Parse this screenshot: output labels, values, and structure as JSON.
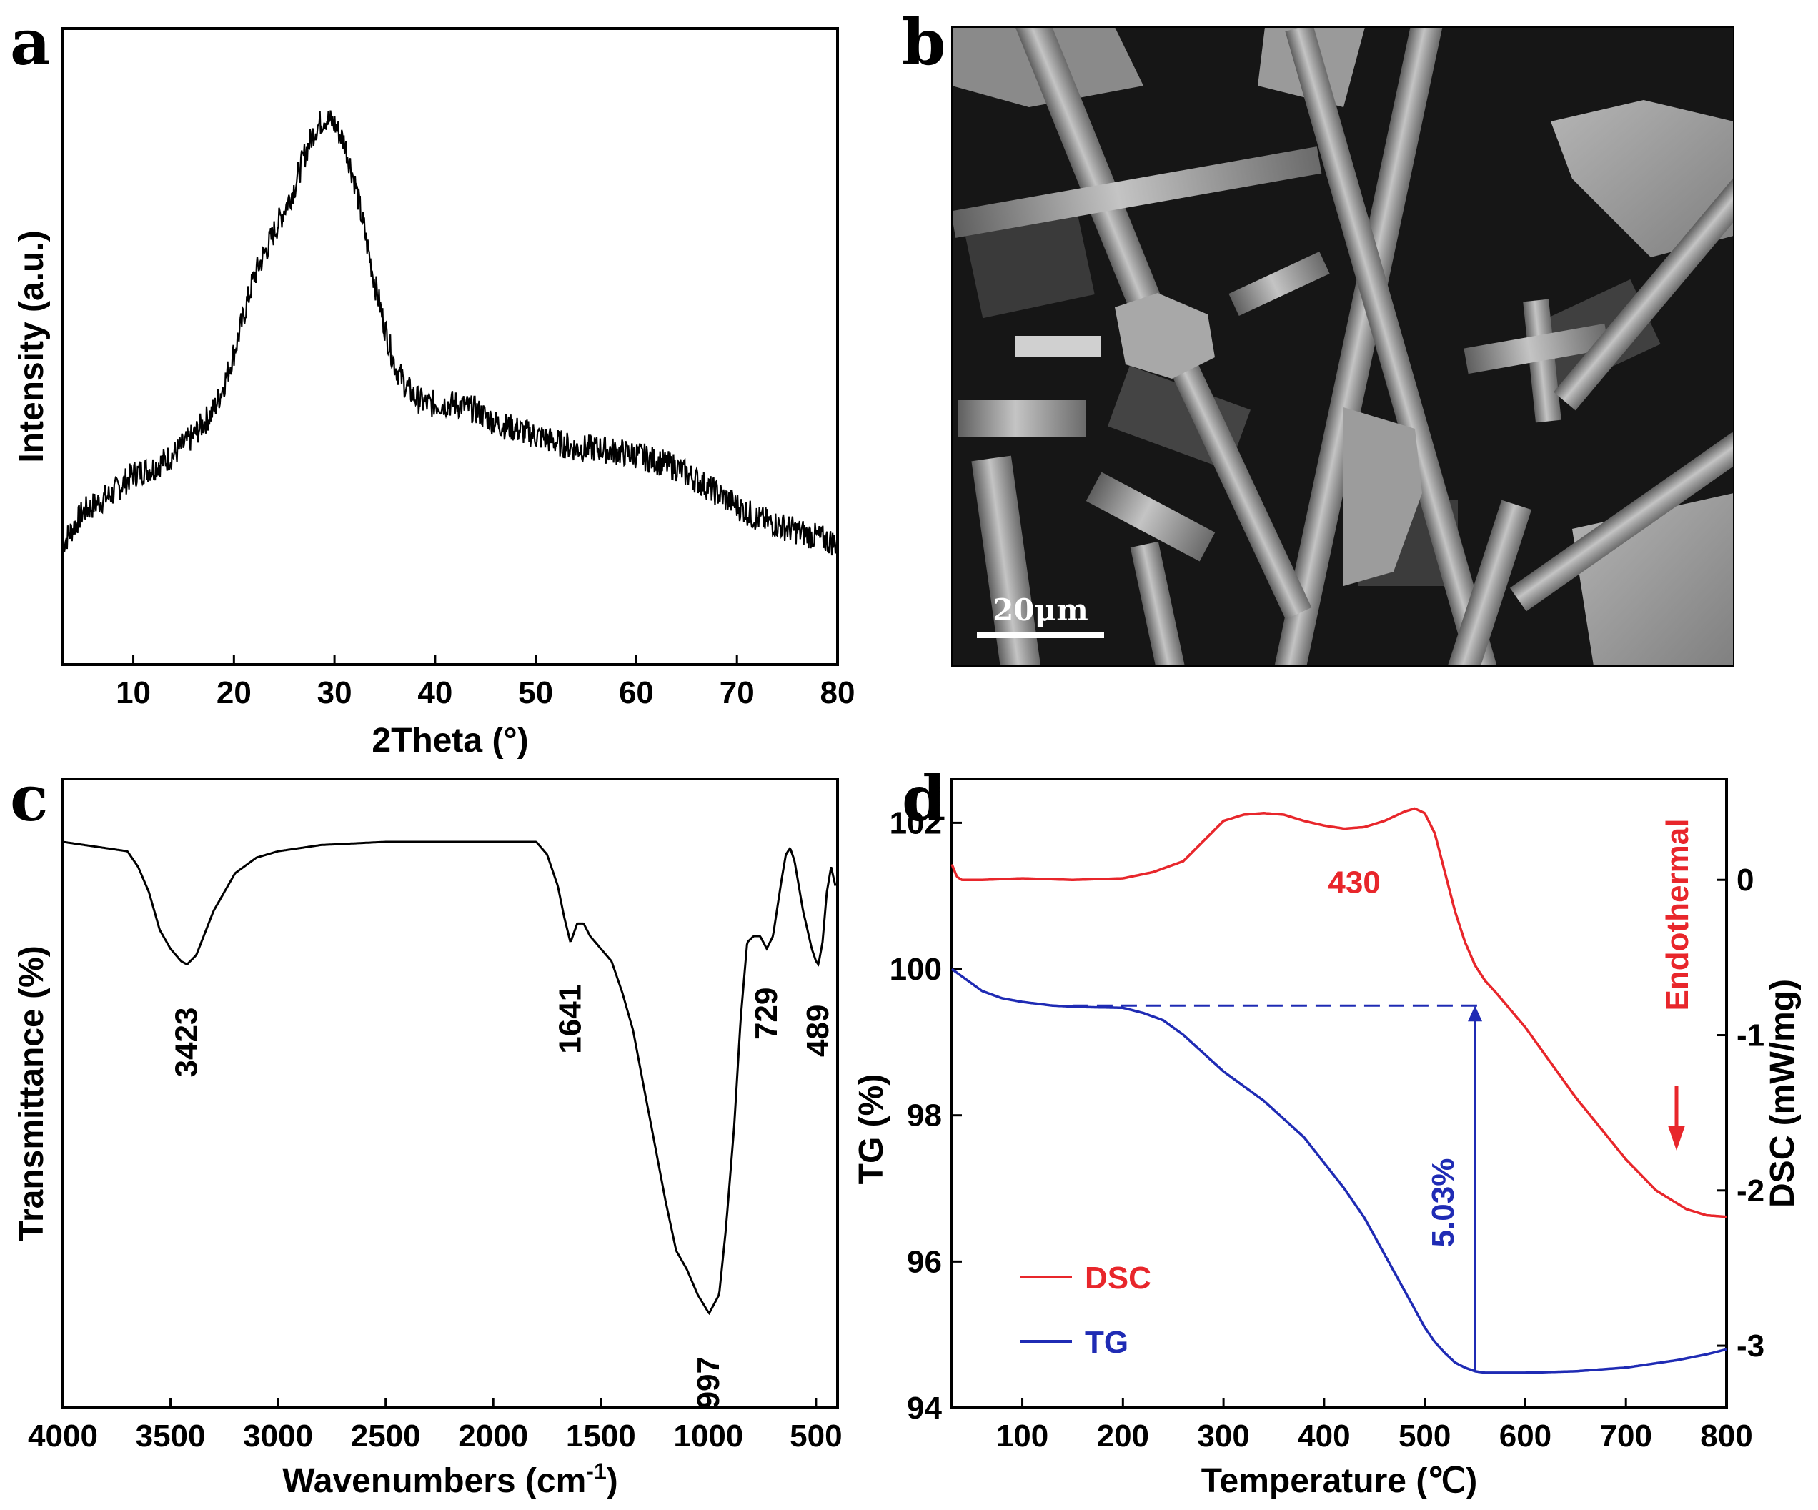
{
  "panels": {
    "a": "a",
    "b": "b",
    "c": "c",
    "d": "d"
  },
  "sem": {
    "scale_label": "20μm"
  },
  "chart_data": [
    {
      "panel": "a",
      "type": "line",
      "xlabel": "2Theta (°)",
      "ylabel": "Intensity (a.u.)",
      "xlim": [
        3,
        80
      ],
      "ylim": [
        0,
        100
      ],
      "xticks": [
        10,
        20,
        30,
        40,
        50,
        60,
        70,
        80
      ],
      "noise": 2.2,
      "series": [
        {
          "color": "#000000",
          "x": [
            3,
            5,
            8,
            10,
            12,
            14,
            16,
            18,
            19,
            20,
            21,
            22,
            24,
            26,
            27,
            28,
            29,
            30,
            31,
            32,
            33,
            34,
            35,
            36,
            37,
            38,
            39,
            40,
            42,
            44,
            46,
            48,
            50,
            52,
            54,
            56,
            58,
            60,
            62,
            64,
            66,
            68,
            70,
            72,
            74,
            76,
            78,
            80
          ],
          "y": [
            19,
            24,
            27,
            30,
            31,
            33,
            36,
            40,
            44,
            49,
            55,
            61,
            68,
            75,
            80,
            84,
            86,
            85,
            82,
            76,
            68,
            60,
            53,
            47,
            44,
            42,
            41,
            41,
            41,
            40,
            38,
            37,
            36,
            35,
            34,
            34,
            33.5,
            33,
            32,
            31,
            29,
            27,
            25,
            23,
            22,
            21,
            20,
            19
          ]
        }
      ]
    },
    {
      "panel": "c",
      "type": "line",
      "xlabel": "Wavenumbers (cm",
      "xlabel_sup": "-1",
      "xlabel_tail": ")",
      "ylabel": "Transmittance (%)",
      "xlim": [
        4000,
        400
      ],
      "ylim": [
        0,
        100
      ],
      "xticks": [
        4000,
        3500,
        3000,
        2500,
        2000,
        1500,
        1000,
        500
      ],
      "series": [
        {
          "color": "#000000",
          "x": [
            4000,
            3800,
            3700,
            3650,
            3600,
            3550,
            3500,
            3450,
            3423,
            3380,
            3300,
            3200,
            3100,
            3000,
            2900,
            2800,
            2500,
            2000,
            1800,
            1750,
            1700,
            1670,
            1641,
            1610,
            1580,
            1550,
            1500,
            1450,
            1400,
            1350,
            1300,
            1250,
            1200,
            1150,
            1100,
            1050,
            997,
            950,
            920,
            880,
            850,
            820,
            790,
            760,
            729,
            700,
            660,
            640,
            620,
            600,
            580,
            560,
            540,
            520,
            500,
            489,
            470,
            450,
            430,
            410
          ],
          "y": [
            90,
            89,
            88.5,
            86,
            82,
            76,
            73,
            71,
            70.5,
            72,
            79,
            85,
            87.5,
            88.5,
            89,
            89.5,
            90,
            90,
            90,
            88,
            83,
            78,
            74,
            77,
            77,
            75,
            73,
            71,
            66,
            60,
            51,
            42,
            33,
            25,
            22,
            18,
            15,
            18,
            28,
            45,
            62,
            74,
            75,
            75,
            73,
            75,
            84,
            88,
            89,
            87,
            83,
            79,
            76,
            73,
            71,
            70.5,
            74,
            82,
            86,
            83
          ]
        }
      ],
      "annotations": [
        {
          "text": "3423",
          "x": 3423
        },
        {
          "text": "1641",
          "x": 1641
        },
        {
          "text": "997",
          "x": 997
        },
        {
          "text": "729",
          "x": 729
        },
        {
          "text": "489",
          "x": 489
        }
      ]
    },
    {
      "panel": "d",
      "type": "line",
      "xlabel": "Temperature (℃)",
      "ylabel": "TG (%)",
      "ylabel_right": "DSC (mW/mg)",
      "xlim": [
        30,
        800
      ],
      "ylim_tg": [
        94,
        102.6
      ],
      "ylim_dsc": [
        -3.4,
        0.65
      ],
      "xticks": [
        100,
        200,
        300,
        400,
        500,
        600,
        700,
        800
      ],
      "yticks_tg": [
        94,
        96,
        98,
        100,
        102
      ],
      "yticks_dsc": [
        -3,
        -2,
        -1,
        0
      ],
      "series": [
        {
          "name": "DSC",
          "axis": "right",
          "color": "#e8262b",
          "x": [
            30,
            35,
            40,
            60,
            100,
            150,
            200,
            230,
            260,
            280,
            300,
            320,
            340,
            360,
            380,
            400,
            420,
            440,
            460,
            480,
            490,
            500,
            510,
            520,
            530,
            540,
            550,
            560,
            570,
            600,
            650,
            700,
            730,
            760,
            780,
            800
          ],
          "y": [
            0.1,
            0.02,
            0.0,
            0.0,
            0.01,
            0.0,
            0.01,
            0.05,
            0.12,
            0.25,
            0.38,
            0.42,
            0.43,
            0.42,
            0.38,
            0.35,
            0.33,
            0.34,
            0.38,
            0.44,
            0.46,
            0.43,
            0.3,
            0.05,
            -0.2,
            -0.4,
            -0.55,
            -0.65,
            -0.72,
            -0.95,
            -1.4,
            -1.8,
            -2.0,
            -2.12,
            -2.16,
            -2.17
          ]
        },
        {
          "name": "TG",
          "axis": "left",
          "color": "#1f2bb4",
          "x": [
            30,
            40,
            60,
            80,
            100,
            130,
            160,
            200,
            220,
            240,
            260,
            280,
            300,
            320,
            340,
            360,
            380,
            400,
            420,
            440,
            460,
            480,
            500,
            510,
            520,
            530,
            540,
            550,
            560,
            600,
            650,
            700,
            750,
            780,
            800
          ],
          "y": [
            100.0,
            99.9,
            99.7,
            99.6,
            99.55,
            99.5,
            99.48,
            99.47,
            99.4,
            99.3,
            99.1,
            98.85,
            98.6,
            98.4,
            98.2,
            97.95,
            97.7,
            97.35,
            97.0,
            96.6,
            96.1,
            95.6,
            95.1,
            94.9,
            94.75,
            94.62,
            94.55,
            94.5,
            94.48,
            94.48,
            94.5,
            94.55,
            94.65,
            94.73,
            94.8
          ]
        }
      ],
      "annotations": {
        "peak_label": "430",
        "loss_label": "5.03%",
        "endo_label": "Endothermal",
        "legend_dsc": "DSC",
        "legend_tg": "TG",
        "dashed_y": 99.5,
        "dashed_x_start": 150,
        "dashed_x_end": 555,
        "arrow_x": 550,
        "arrow_y_bottom": 94.5,
        "arrow_y_top": 99.5
      }
    }
  ]
}
